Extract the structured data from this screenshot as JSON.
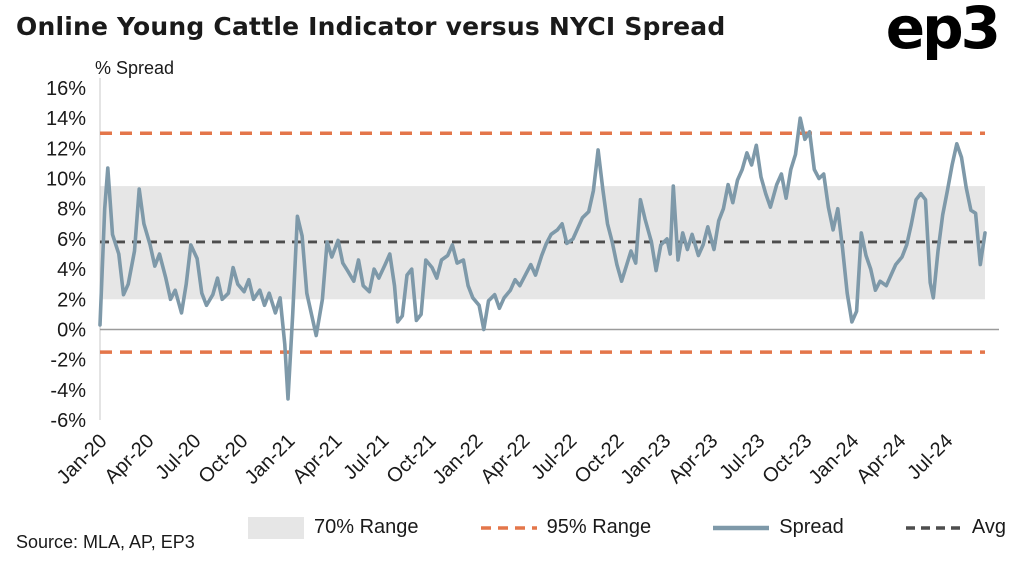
{
  "title": "Online Young Cattle Indicator versus NYCI Spread",
  "logo_text": "ep3",
  "source": "Source: MLA, AP, EP3",
  "colors": {
    "spread": "#7E99A9",
    "range95": "#E4764A",
    "avg": "#4D4D4D",
    "band70": "#E6E6E6",
    "zero_line": "#9B9B9B",
    "axis_line": "#C9C9C9",
    "axis_text": "#1A1A1A"
  },
  "legend": [
    {
      "label": "70% Range",
      "type": "band"
    },
    {
      "label": "95% Range",
      "type": "dashed-orange"
    },
    {
      "label": "Spread",
      "type": "line"
    },
    {
      "label": "Avg",
      "type": "dashed-dark"
    }
  ],
  "chart_data": {
    "type": "line",
    "title": "Online Young Cattle Indicator versus NYCI Spread",
    "ylabel": "% Spread",
    "xlabel": "",
    "ylim": [
      -6,
      16
    ],
    "y_ticks": [
      16,
      14,
      12,
      10,
      8,
      6,
      4,
      2,
      0,
      -2,
      -4,
      -6
    ],
    "y_tick_suffix": "%",
    "x_tick_labels": [
      "Jan-20",
      "Apr-20",
      "Jul-20",
      "Oct-20",
      "Jan-21",
      "Apr-21",
      "Jul-21",
      "Oct-21",
      "Jan-22",
      "Apr-22",
      "Jul-22",
      "Oct-22",
      "Jan-23",
      "Apr-23",
      "Jul-23",
      "Oct-23",
      "Jan-24",
      "Apr-24",
      "Jul-24"
    ],
    "x_tick_positions_months": [
      0,
      3,
      6,
      9,
      12,
      15,
      18,
      21,
      24,
      27,
      30,
      33,
      36,
      39,
      42,
      45,
      48,
      51,
      54
    ],
    "x_range_months": [
      0,
      56.5
    ],
    "grid": false,
    "legend_position": "bottom",
    "band_70_range_pct": [
      2.0,
      9.5
    ],
    "band_95_range_pct": [
      -1.5,
      13.0
    ],
    "avg_pct": 5.8,
    "series": [
      {
        "name": "Spread",
        "points_months_pct": [
          [
            0,
            0.3
          ],
          [
            0.3,
            8
          ],
          [
            0.5,
            10.7
          ],
          [
            0.8,
            6.3
          ],
          [
            1.2,
            5
          ],
          [
            1.5,
            2.3
          ],
          [
            1.8,
            3
          ],
          [
            2.2,
            5.2
          ],
          [
            2.5,
            9.3
          ],
          [
            2.8,
            7
          ],
          [
            3.2,
            5.6
          ],
          [
            3.5,
            4.2
          ],
          [
            3.8,
            5
          ],
          [
            4.2,
            3.4
          ],
          [
            4.5,
            2
          ],
          [
            4.8,
            2.6
          ],
          [
            5.2,
            1.1
          ],
          [
            5.5,
            3
          ],
          [
            5.8,
            5.6
          ],
          [
            6.2,
            4.7
          ],
          [
            6.5,
            2.4
          ],
          [
            6.8,
            1.6
          ],
          [
            7.2,
            2.3
          ],
          [
            7.5,
            3.4
          ],
          [
            7.8,
            2
          ],
          [
            8.2,
            2.4
          ],
          [
            8.5,
            4.1
          ],
          [
            8.8,
            3
          ],
          [
            9.2,
            2.5
          ],
          [
            9.5,
            3.3
          ],
          [
            9.8,
            2
          ],
          [
            10.2,
            2.6
          ],
          [
            10.5,
            1.6
          ],
          [
            10.8,
            2.4
          ],
          [
            11.2,
            1.1
          ],
          [
            11.5,
            2.1
          ],
          [
            11.8,
            -1
          ],
          [
            12,
            -4.6
          ],
          [
            12.3,
            1
          ],
          [
            12.6,
            7.5
          ],
          [
            12.9,
            6.2
          ],
          [
            13.2,
            2.4
          ],
          [
            13.5,
            1
          ],
          [
            13.8,
            -0.4
          ],
          [
            14.2,
            2
          ],
          [
            14.5,
            5.8
          ],
          [
            14.8,
            4.8
          ],
          [
            15.2,
            5.9
          ],
          [
            15.5,
            4.4
          ],
          [
            15.8,
            3.9
          ],
          [
            16.2,
            3.2
          ],
          [
            16.5,
            4.6
          ],
          [
            16.8,
            2.9
          ],
          [
            17.2,
            2.5
          ],
          [
            17.5,
            4
          ],
          [
            17.8,
            3.4
          ],
          [
            18.2,
            4.3
          ],
          [
            18.5,
            5
          ],
          [
            18.8,
            2.9
          ],
          [
            19,
            0.5
          ],
          [
            19.3,
            0.9
          ],
          [
            19.6,
            3.6
          ],
          [
            19.9,
            4
          ],
          [
            20.2,
            0.6
          ],
          [
            20.5,
            1
          ],
          [
            20.8,
            4.6
          ],
          [
            21.2,
            4.1
          ],
          [
            21.5,
            3.4
          ],
          [
            21.8,
            4.6
          ],
          [
            22.2,
            4.9
          ],
          [
            22.5,
            5.6
          ],
          [
            22.8,
            4.4
          ],
          [
            23.2,
            4.6
          ],
          [
            23.5,
            2.9
          ],
          [
            23.8,
            2.1
          ],
          [
            24.2,
            1.6
          ],
          [
            24.5,
            0
          ],
          [
            24.8,
            1.9
          ],
          [
            25.2,
            2.3
          ],
          [
            25.5,
            1.4
          ],
          [
            25.8,
            2.1
          ],
          [
            26.2,
            2.6
          ],
          [
            26.5,
            3.3
          ],
          [
            26.8,
            2.9
          ],
          [
            27.2,
            3.7
          ],
          [
            27.5,
            4.3
          ],
          [
            27.8,
            3.6
          ],
          [
            28.2,
            4.9
          ],
          [
            28.5,
            5.7
          ],
          [
            28.8,
            6.3
          ],
          [
            29.2,
            6.6
          ],
          [
            29.5,
            7
          ],
          [
            29.8,
            5.7
          ],
          [
            30.2,
            6
          ],
          [
            30.5,
            6.7
          ],
          [
            30.8,
            7.4
          ],
          [
            31.2,
            7.8
          ],
          [
            31.5,
            9.2
          ],
          [
            31.8,
            11.9
          ],
          [
            32.1,
            9.3
          ],
          [
            32.4,
            7
          ],
          [
            32.7,
            5.8
          ],
          [
            33,
            4.3
          ],
          [
            33.3,
            3.2
          ],
          [
            33.6,
            4.2
          ],
          [
            33.9,
            5.2
          ],
          [
            34.2,
            4.4
          ],
          [
            34.5,
            8.6
          ],
          [
            34.8,
            7.3
          ],
          [
            35.2,
            5.8
          ],
          [
            35.5,
            3.9
          ],
          [
            35.8,
            5.6
          ],
          [
            36.2,
            6
          ],
          [
            36.4,
            5
          ],
          [
            36.6,
            9.5
          ],
          [
            36.9,
            4.6
          ],
          [
            37.2,
            6.4
          ],
          [
            37.5,
            5.3
          ],
          [
            37.8,
            6.3
          ],
          [
            38.2,
            4.9
          ],
          [
            38.5,
            5.6
          ],
          [
            38.8,
            6.8
          ],
          [
            39.2,
            5.3
          ],
          [
            39.5,
            7.2
          ],
          [
            39.8,
            8
          ],
          [
            40.1,
            9.6
          ],
          [
            40.4,
            8.4
          ],
          [
            40.7,
            9.9
          ],
          [
            41,
            10.6
          ],
          [
            41.3,
            11.7
          ],
          [
            41.6,
            10.9
          ],
          [
            41.9,
            12.2
          ],
          [
            42.2,
            10.1
          ],
          [
            42.5,
            9
          ],
          [
            42.8,
            8.1
          ],
          [
            43.2,
            9.6
          ],
          [
            43.5,
            10.3
          ],
          [
            43.8,
            8.7
          ],
          [
            44.1,
            10.6
          ],
          [
            44.4,
            11.6
          ],
          [
            44.7,
            14
          ],
          [
            45,
            12.6
          ],
          [
            45.3,
            13.1
          ],
          [
            45.6,
            10.6
          ],
          [
            45.9,
            10
          ],
          [
            46.2,
            10.3
          ],
          [
            46.5,
            8.1
          ],
          [
            46.8,
            6.6
          ],
          [
            47.1,
            8
          ],
          [
            47.4,
            5.4
          ],
          [
            47.7,
            2.4
          ],
          [
            48,
            0.5
          ],
          [
            48.3,
            1.2
          ],
          [
            48.6,
            6.4
          ],
          [
            48.9,
            4.9
          ],
          [
            49.2,
            4
          ],
          [
            49.5,
            2.6
          ],
          [
            49.8,
            3.2
          ],
          [
            50.2,
            2.9
          ],
          [
            50.5,
            3.6
          ],
          [
            50.8,
            4.3
          ],
          [
            51.2,
            4.8
          ],
          [
            51.5,
            5.6
          ],
          [
            51.8,
            7
          ],
          [
            52.1,
            8.6
          ],
          [
            52.4,
            9
          ],
          [
            52.7,
            8.6
          ],
          [
            53,
            3.1
          ],
          [
            53.2,
            2.1
          ],
          [
            53.5,
            5.2
          ],
          [
            53.8,
            7.6
          ],
          [
            54.1,
            9.2
          ],
          [
            54.4,
            10.9
          ],
          [
            54.7,
            12.3
          ],
          [
            55,
            11.4
          ],
          [
            55.3,
            9.4
          ],
          [
            55.6,
            7.9
          ],
          [
            55.9,
            7.7
          ],
          [
            56.2,
            4.3
          ],
          [
            56.5,
            6.4
          ]
        ]
      }
    ]
  }
}
